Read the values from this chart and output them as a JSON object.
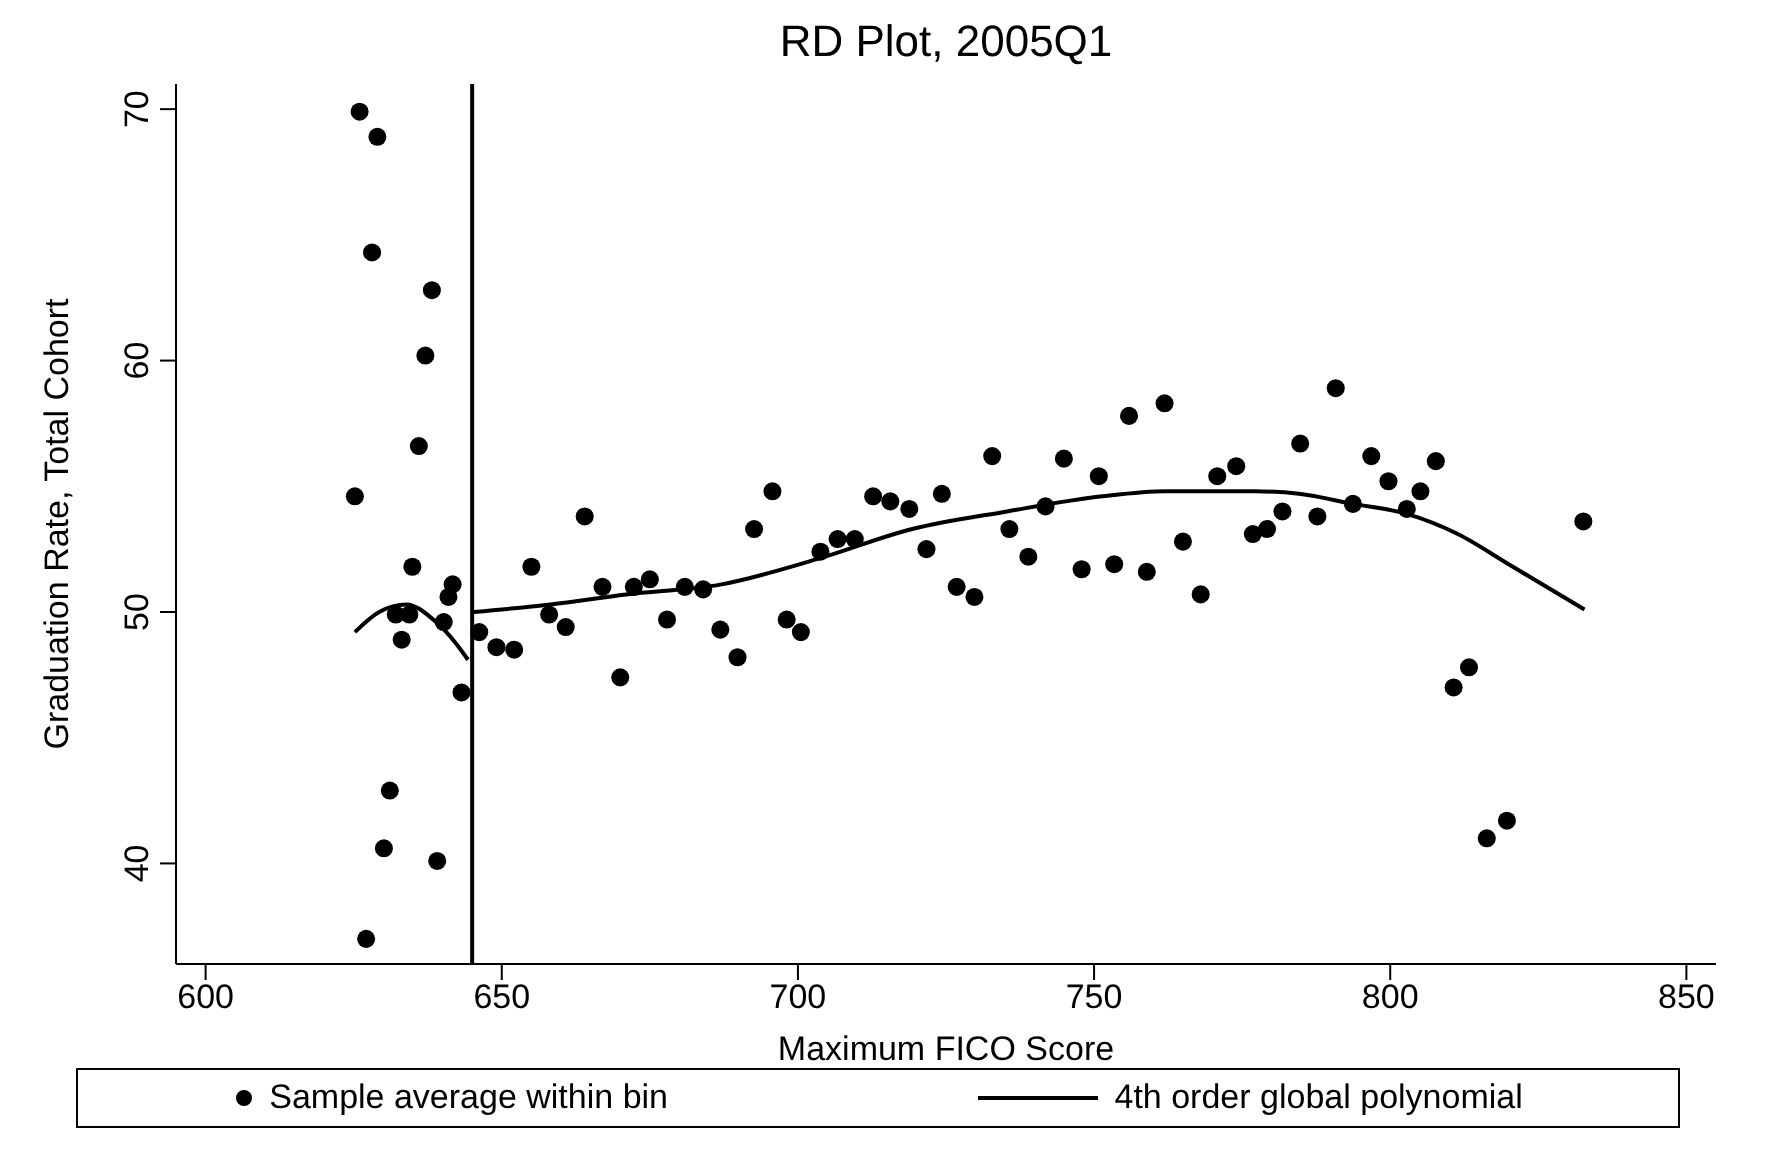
{
  "chart_data": {
    "type": "scatter",
    "title": "RD Plot, 2005Q1",
    "xlabel": "Maximum FICO Score",
    "ylabel": "Graduation Rate, Total Cohort",
    "xlim": [
      595,
      855
    ],
    "xticks": [
      600,
      650,
      700,
      750,
      800,
      850
    ],
    "ylim": [
      36,
      71
    ],
    "yticks": [
      40,
      50,
      60,
      70
    ],
    "grid": false,
    "legend": "bottom",
    "ref_lines": [
      {
        "axis": "x",
        "value": 645,
        "color": "#000000",
        "line_style": "solid"
      }
    ],
    "series": [
      {
        "name": "Sample average within bin",
        "marker": "circle",
        "color": "#000000",
        "x": [
          626.0,
          629.0,
          628.1,
          638.2,
          637.1,
          636.0,
          625.2,
          634.9,
          641.7,
          641.0,
          632.1,
          634.4,
          640.2,
          633.1,
          643.2,
          631.1,
          630.1,
          639.1,
          627.1,
          646.2,
          649.1,
          652.1,
          655.0,
          658.0,
          660.8,
          664.0,
          667.0,
          670.0,
          672.3,
          675.0,
          677.9,
          680.9,
          684.0,
          686.9,
          689.8,
          692.6,
          695.7,
          698.1,
          700.5,
          703.8,
          706.7,
          709.6,
          712.7,
          715.6,
          718.8,
          721.7,
          724.3,
          726.8,
          729.8,
          732.8,
          735.7,
          738.9,
          741.8,
          744.9,
          747.9,
          750.8,
          753.4,
          755.9,
          758.9,
          761.9,
          765.0,
          768.0,
          770.8,
          774.0,
          776.8,
          779.2,
          781.8,
          784.8,
          787.7,
          790.8,
          793.7,
          796.8,
          799.7,
          802.8,
          805.1,
          807.7,
          810.7,
          813.3,
          816.3,
          819.7,
          832.6
        ],
        "values": [
          69.9,
          68.9,
          64.3,
          62.8,
          60.2,
          56.6,
          54.6,
          51.8,
          51.1,
          50.6,
          49.9,
          49.9,
          49.6,
          48.9,
          46.8,
          42.9,
          40.6,
          40.1,
          37.0,
          49.2,
          48.6,
          48.5,
          51.8,
          49.9,
          49.4,
          53.8,
          51.0,
          47.4,
          51.0,
          51.3,
          49.7,
          51.0,
          50.9,
          49.3,
          48.2,
          53.3,
          54.8,
          49.7,
          49.2,
          52.4,
          52.9,
          52.9,
          54.6,
          54.4,
          54.1,
          52.5,
          54.7,
          51.0,
          50.6,
          56.2,
          53.3,
          52.2,
          54.2,
          56.1,
          51.7,
          55.4,
          51.9,
          57.8,
          51.6,
          58.3,
          52.8,
          50.7,
          55.4,
          55.8,
          53.1,
          53.3,
          54.0,
          56.7,
          53.8,
          58.9,
          54.3,
          56.2,
          55.2,
          54.1,
          54.8,
          56.0,
          47.0,
          47.8,
          41.0,
          41.7,
          53.6
        ]
      },
      {
        "name": "4th order global polynomial",
        "type": "line",
        "marker": "none",
        "line_style": "solid",
        "color": "#000000",
        "x": [
          625.2,
          629.3,
          633.9,
          638.9,
          642.1,
          644.3,
          645.0,
          645.3,
          658.2,
          671.0,
          687.1,
          703.2,
          719.3,
          735.3,
          751.4,
          762.1,
          777.1,
          784.6,
          793.7,
          802.8,
          811.4,
          820.0,
          832.8
        ],
        "values": [
          49.2,
          50.0,
          50.3,
          49.6,
          48.8,
          48.1,
          null,
          50.0,
          50.3,
          50.7,
          51.1,
          52.1,
          53.3,
          54.0,
          54.6,
          54.8,
          54.8,
          54.7,
          54.3,
          53.9,
          53.1,
          51.9,
          50.1
        ]
      }
    ]
  }
}
